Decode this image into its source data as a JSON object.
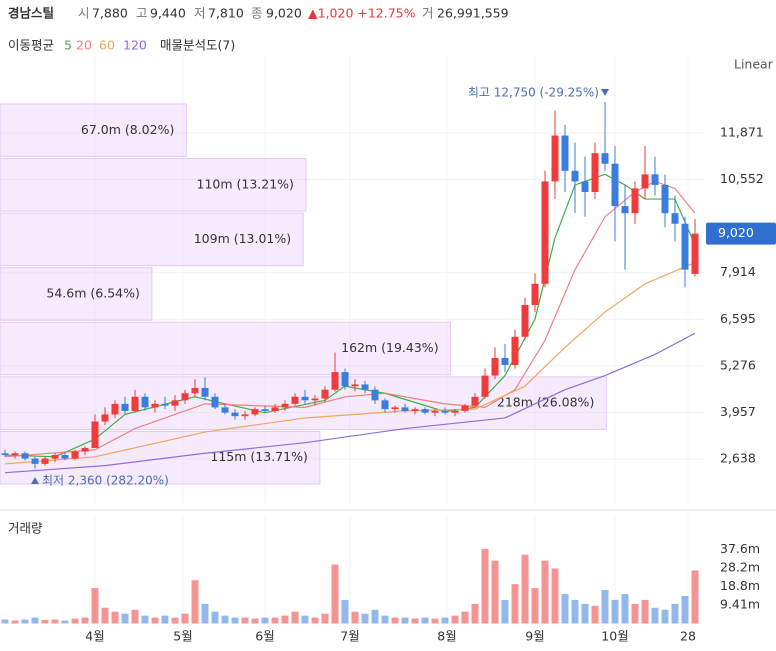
{
  "header": {
    "name": "경남스틸",
    "fields": [
      {
        "label": "시",
        "value": "7,880"
      },
      {
        "label": "고",
        "value": "9,440"
      },
      {
        "label": "저",
        "value": "7,810"
      },
      {
        "label": "종",
        "value": "9,020"
      }
    ],
    "change": "▲1,020 +12.75%",
    "volume": {
      "label": "거",
      "value": "26,991,559"
    }
  },
  "chart_data": {
    "type": "candlestick",
    "ma_title": "이동평균",
    "scale_label": "Linear",
    "volume_title": "거래량",
    "xlim": [
      -0.5,
      70
    ],
    "ylim": [
      1335,
      14080
    ],
    "xticks": [
      {
        "value": 9,
        "label": "4월"
      },
      {
        "value": 17.8,
        "label": "5월"
      },
      {
        "value": 26,
        "label": "6월"
      },
      {
        "value": 34.5,
        "label": "7월"
      },
      {
        "value": 44.2,
        "label": "8월"
      },
      {
        "value": 53,
        "label": "9월"
      },
      {
        "value": 61,
        "label": "10월"
      },
      {
        "value": 68.3,
        "label": "28"
      }
    ],
    "yticks": [
      {
        "value": 11871,
        "label": "11,871"
      },
      {
        "value": 10552,
        "label": "10,552"
      },
      {
        "value": 7914,
        "label": "7,914"
      },
      {
        "value": 6595,
        "label": "6,595"
      },
      {
        "value": 5276,
        "label": "5,276"
      },
      {
        "value": 3957,
        "label": "3,957"
      },
      {
        "value": 2638,
        "label": "2,638"
      }
    ],
    "grid": true,
    "up_color": "#ef3b3b",
    "down_color": "#3b7ddd",
    "ohlc": [
      [
        2800,
        2900,
        2700,
        2750
      ],
      [
        2750,
        2850,
        2650,
        2800
      ],
      [
        2800,
        2850,
        2600,
        2650
      ],
      [
        2650,
        2700,
        2360,
        2500
      ],
      [
        2500,
        2700,
        2450,
        2650
      ],
      [
        2650,
        2800,
        2550,
        2750
      ],
      [
        2750,
        2850,
        2600,
        2650
      ],
      [
        2650,
        2900,
        2600,
        2850
      ],
      [
        2850,
        3000,
        2750,
        2950
      ],
      [
        2950,
        3900,
        2950,
        3700
      ],
      [
        3700,
        4100,
        3600,
        3900
      ],
      [
        3900,
        4300,
        3800,
        4200
      ],
      [
        4200,
        4400,
        3900,
        4000
      ],
      [
        4000,
        4600,
        3950,
        4400
      ],
      [
        4400,
        4500,
        4000,
        4100
      ],
      [
        4100,
        4300,
        3950,
        4200
      ],
      [
        4200,
        4400,
        4050,
        4150
      ],
      [
        4150,
        4450,
        4000,
        4300
      ],
      [
        4300,
        4600,
        4200,
        4500
      ],
      [
        4500,
        4900,
        4400,
        4650
      ],
      [
        4650,
        4950,
        4300,
        4400
      ],
      [
        4400,
        4500,
        4050,
        4100
      ],
      [
        4100,
        4200,
        3900,
        3950
      ],
      [
        3950,
        4050,
        3750,
        3850
      ],
      [
        3850,
        4000,
        3750,
        3900
      ],
      [
        3900,
        4100,
        3850,
        4050
      ],
      [
        4050,
        4150,
        3950,
        4000
      ],
      [
        4000,
        4200,
        3950,
        4100
      ],
      [
        4100,
        4300,
        4000,
        4200
      ],
      [
        4200,
        4500,
        4150,
        4400
      ],
      [
        4400,
        4600,
        4200,
        4300
      ],
      [
        4300,
        4450,
        4150,
        4350
      ],
      [
        4350,
        4700,
        4250,
        4600
      ],
      [
        4600,
        5650,
        4550,
        5100
      ],
      [
        5100,
        5200,
        4600,
        4700
      ],
      [
        4700,
        4900,
        4550,
        4750
      ],
      [
        4750,
        4850,
        4500,
        4600
      ],
      [
        4600,
        4700,
        4200,
        4300
      ],
      [
        4300,
        4350,
        3950,
        4050
      ],
      [
        4050,
        4150,
        3950,
        4100
      ],
      [
        4100,
        4200,
        3950,
        4000
      ],
      [
        4000,
        4100,
        3900,
        4050
      ],
      [
        4050,
        4100,
        3900,
        3950
      ],
      [
        3950,
        4050,
        3850,
        4000
      ],
      [
        4000,
        4100,
        3900,
        3950
      ],
      [
        3950,
        4050,
        3850,
        4000
      ],
      [
        4000,
        4200,
        3950,
        4150
      ],
      [
        4150,
        4500,
        4100,
        4400
      ],
      [
        4400,
        5200,
        4350,
        5000
      ],
      [
        5000,
        5800,
        4900,
        5500
      ],
      [
        5500,
        5900,
        5100,
        5300
      ],
      [
        5300,
        6300,
        5200,
        6100
      ],
      [
        6100,
        7200,
        6000,
        7000
      ],
      [
        7000,
        7900,
        6800,
        7600
      ],
      [
        7600,
        10800,
        7500,
        10500
      ],
      [
        10500,
        12500,
        10000,
        11800
      ],
      [
        11800,
        12100,
        10200,
        10800
      ],
      [
        10800,
        11600,
        9600,
        10500
      ],
      [
        10500,
        11200,
        9500,
        10200
      ],
      [
        10200,
        11600,
        10000,
        11300
      ],
      [
        11300,
        12750,
        10800,
        11000
      ],
      [
        11000,
        11500,
        8800,
        9800
      ],
      [
        9800,
        10400,
        8000,
        9600
      ],
      [
        9600,
        10500,
        9300,
        10300
      ],
      [
        10300,
        11500,
        10000,
        10700
      ],
      [
        10700,
        11200,
        10100,
        10400
      ],
      [
        10400,
        10700,
        9200,
        9600
      ],
      [
        9600,
        10100,
        8800,
        9300
      ],
      [
        9300,
        9500,
        7500,
        8000
      ],
      [
        7880,
        9440,
        7810,
        9020
      ]
    ],
    "volume_ylim": [
      0,
      55.2
    ],
    "volume_ticks": [
      {
        "value": 37.6,
        "label": "37.6m"
      },
      {
        "value": 28.2,
        "label": "28.2m"
      },
      {
        "value": 18.8,
        "label": "18.8m"
      },
      {
        "value": 9.41,
        "label": "9.41m"
      }
    ],
    "volume": [
      2,
      1.5,
      2,
      3,
      1.8,
      2,
      1.5,
      2.5,
      3,
      18,
      8,
      6,
      5,
      7,
      4,
      3,
      4,
      3,
      5,
      22,
      10,
      6,
      4,
      3,
      3,
      2.5,
      3,
      3,
      4,
      6,
      4,
      3,
      5,
      30,
      12,
      6,
      5,
      7,
      4,
      3,
      3,
      2.5,
      3,
      2.5,
      3,
      4,
      6,
      10,
      38,
      32,
      12,
      20,
      35,
      18,
      32,
      28,
      15,
      12,
      10,
      9,
      17,
      12,
      15,
      10,
      12,
      8,
      7,
      10,
      14,
      26.99
    ],
    "series": [
      {
        "name": "5",
        "color": "#3cb043",
        "x": [
          0,
          5,
          9,
          12,
          19,
          22,
          26,
          32,
          34,
          38,
          44,
          47,
          50,
          53,
          55,
          57,
          60,
          62,
          64,
          67,
          69
        ],
        "values": [
          2750,
          2700,
          3200,
          3900,
          4400,
          4200,
          3950,
          4300,
          4700,
          4500,
          3980,
          4100,
          5000,
          6600,
          8900,
          10400,
          10700,
          10400,
          10000,
          10000,
          8700
        ]
      },
      {
        "name": "20",
        "color": "#f08080",
        "x": [
          0,
          9,
          13,
          20,
          25,
          30,
          34,
          38,
          44,
          48,
          51,
          54,
          57,
          60,
          63,
          65,
          67,
          69
        ],
        "values": [
          2700,
          2900,
          3500,
          4200,
          4150,
          4100,
          4400,
          4500,
          4200,
          4100,
          4600,
          6000,
          8000,
          9500,
          10200,
          10500,
          10300,
          9600
        ]
      },
      {
        "name": "60",
        "color": "#f4a460",
        "x": [
          0,
          9,
          20,
          30,
          40,
          47,
          52,
          56,
          60,
          64,
          69
        ],
        "values": [
          2500,
          2700,
          3400,
          3800,
          4000,
          4050,
          4700,
          5800,
          6800,
          7600,
          8200
        ]
      },
      {
        "name": "120",
        "color": "#8a6fdb",
        "x": [
          0,
          10,
          20,
          30,
          40,
          50,
          56,
          60,
          65,
          69
        ],
        "values": [
          2250,
          2450,
          2800,
          3100,
          3500,
          3800,
          4600,
          5000,
          5600,
          6200
        ]
      }
    ],
    "profile": {
      "name": "매물분석도(7)",
      "xlim": [
        0,
        279
      ],
      "bins": [
        1902,
        3448,
        4993,
        6539,
        8085,
        9630,
        11176,
        12721
      ],
      "values": [
        115,
        218,
        162,
        54.6,
        109,
        110,
        67.0
      ],
      "value_labels": [
        "115m (13.71%)",
        "218m (26.08%)",
        "162m (19.43%)",
        "54.6m (6.54%)",
        "109m (13.01%)",
        "110m (13.21%)",
        "67.0m (8.02%)"
      ]
    },
    "last": {
      "value": 9020,
      "label": "9,020"
    },
    "high": {
      "index": 60,
      "value": 12750,
      "label": "최고 12,750 (-29.25%)"
    },
    "low": {
      "index": 3,
      "value": 2360,
      "label": "최저 2,360 (282.20%)"
    }
  }
}
